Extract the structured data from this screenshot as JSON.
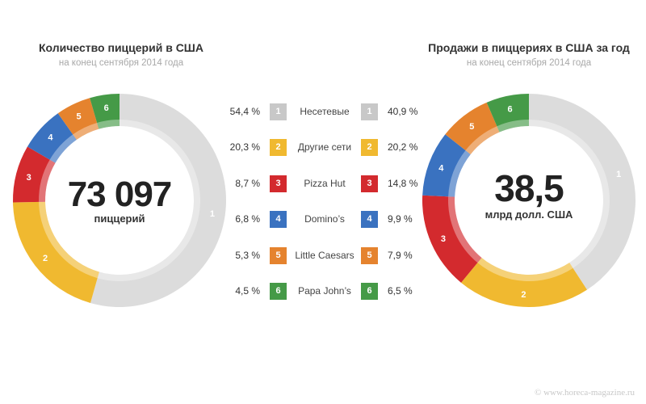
{
  "left": {
    "title": "Количество пиццерий в США",
    "subtitle": "на конец сентября 2014 года",
    "center_value": "73 097",
    "center_unit": "пиццерий"
  },
  "right": {
    "title": "Продажи в пиццериях в США за год",
    "subtitle": "на конец сентября 2014 года",
    "center_value": "38,5",
    "center_unit": "млрд долл. США"
  },
  "legend": [
    {
      "num": "1",
      "name": "Несетевые",
      "left_pct": "54,4 %",
      "right_pct": "40,9 %",
      "color": "#c8c8c8"
    },
    {
      "num": "2",
      "name": "Другие сети",
      "left_pct": "20,3 %",
      "right_pct": "20,2 %",
      "color": "#f0b930"
    },
    {
      "num": "3",
      "name": "Pizza Hut",
      "left_pct": "8,7 %",
      "right_pct": "14,8 %",
      "color": "#d32a2e"
    },
    {
      "num": "4",
      "name": "Domino’s",
      "left_pct": "6,8 %",
      "right_pct": "9,9 %",
      "color": "#3a72c0"
    },
    {
      "num": "5",
      "name": "Little Caesars",
      "left_pct": "5,3 %",
      "right_pct": "7,9 %",
      "color": "#e5832e"
    },
    {
      "num": "6",
      "name": "Papa John’s",
      "left_pct": "4,5 %",
      "right_pct": "6,5 %",
      "color": "#459a47"
    }
  ],
  "watermark": "© www.horeca-magazine.ru",
  "chart_data": [
    {
      "type": "pie",
      "title": "Количество пиццерий в США",
      "subtitle": "на конец сентября 2014 года",
      "center_label": "73 097 пиццерий",
      "categories": [
        "Несетевые",
        "Другие сети",
        "Pizza Hut",
        "Domino’s",
        "Little Caesars",
        "Papa John’s"
      ],
      "values": [
        54.4,
        20.3,
        8.7,
        6.8,
        5.3,
        4.5
      ],
      "colors": [
        "#dcdcdc",
        "#f0b930",
        "#d32a2e",
        "#3a72c0",
        "#e5832e",
        "#459a47"
      ],
      "labels": [
        "1",
        "2",
        "3",
        "4",
        "5",
        "6"
      ],
      "donut": true
    },
    {
      "type": "pie",
      "title": "Продажи в пиццериях в США за год",
      "subtitle": "на конец сентября 2014 года",
      "center_label": "38,5 млрд долл. США",
      "categories": [
        "Несетевые",
        "Другие сети",
        "Pizza Hut",
        "Domino’s",
        "Little Caesars",
        "Papa John’s"
      ],
      "values": [
        40.9,
        20.2,
        14.8,
        9.9,
        7.9,
        6.5
      ],
      "colors": [
        "#dcdcdc",
        "#f0b930",
        "#d32a2e",
        "#3a72c0",
        "#e5832e",
        "#459a47"
      ],
      "labels": [
        "1",
        "2",
        "3",
        "4",
        "5",
        "6"
      ],
      "donut": true
    }
  ]
}
